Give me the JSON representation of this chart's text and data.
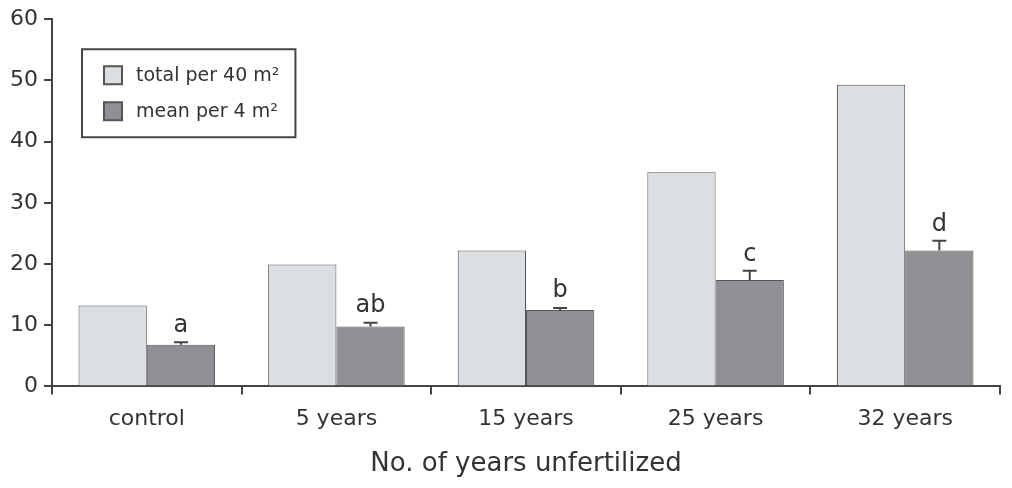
{
  "chart_data": {
    "type": "bar",
    "xlabel": "No. of years unfertilized",
    "categories": [
      "control",
      "5 years",
      "15 years",
      "25 years",
      "32 years"
    ],
    "series": [
      {
        "name": "total per 40 m²",
        "color": "#dcdfe2",
        "values": [
          13.2,
          19.9,
          22.2,
          35.0,
          49.3
        ]
      },
      {
        "name": "mean per 4 m²",
        "color": "#8e9093",
        "values": [
          6.8,
          9.8,
          12.5,
          17.4,
          22.2
        ],
        "errors": [
          [
            6.8,
            7.2
          ],
          [
            9.8,
            10.4
          ],
          [
            12.5,
            12.8
          ],
          [
            17.4,
            18.9
          ],
          [
            22.2,
            23.8
          ]
        ]
      }
    ],
    "ylim": [
      0,
      60
    ],
    "yticks": [
      0,
      10,
      20,
      30,
      40,
      50,
      60
    ],
    "grid": false,
    "legend": "top left",
    "annotations": [
      {
        "text": "a",
        "x": "control",
        "y": 8.0
      },
      {
        "text": "ab",
        "x": "5 years",
        "y": 11.2
      },
      {
        "text": "b",
        "x": "15 years",
        "y": 13.6
      },
      {
        "text": "c",
        "x": "25 years",
        "y": 19.6
      },
      {
        "text": "d",
        "x": "32 years",
        "y": 24.4
      }
    ]
  }
}
